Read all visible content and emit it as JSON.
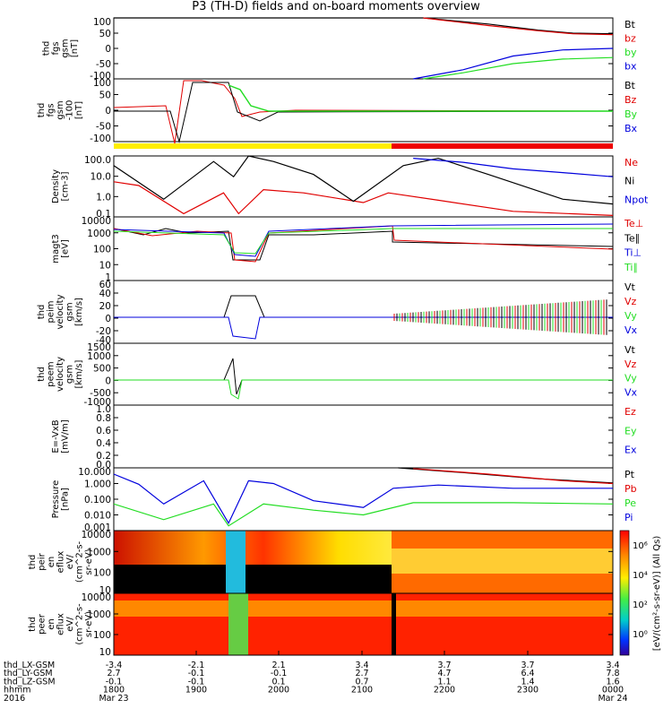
{
  "title": "P3 (TH-D) fields and on-board moments overview",
  "colors": {
    "black": "#000000",
    "red": "#e00000",
    "green": "#22dd22",
    "blue": "#0000dd",
    "yellow": "#ffee00",
    "orbit_red": "#ee0000"
  },
  "panels": [
    {
      "id": "fgs",
      "ylabel_lines": [
        "thd",
        "fgs",
        "gsm",
        "[nT]"
      ],
      "yticks": [
        "100",
        "50",
        "0",
        "-50",
        "-100"
      ],
      "ylim": [
        -100,
        100
      ],
      "legend": [
        {
          "text": "Bt",
          "color": "black"
        },
        {
          "text": "bz",
          "color": "red"
        },
        {
          "text": "by",
          "color": "green"
        },
        {
          "text": "bx",
          "color": "blue"
        }
      ]
    },
    {
      "id": "fgs_lo",
      "ylabel_lines": [
        "thd",
        "fgs",
        "gsm",
        "-100",
        "[nT]"
      ],
      "yticks": [
        "100",
        "50",
        "0",
        "-50",
        "-100"
      ],
      "ylim": [
        -120,
        110
      ],
      "legend": [
        {
          "text": "Bt",
          "color": "black"
        },
        {
          "text": "Bz",
          "color": "red"
        },
        {
          "text": "By",
          "color": "green"
        },
        {
          "text": "Bx",
          "color": "blue"
        }
      ]
    },
    {
      "id": "density",
      "ylabel_lines": [
        "Density",
        "[cm-3]"
      ],
      "yticks": [
        "100.0",
        "10.0",
        "1.0",
        "0.1"
      ],
      "ylim": [
        0.1,
        200
      ],
      "scale": "log",
      "legend": [
        {
          "text": "Ne",
          "color": "red"
        },
        {
          "text": "Ni",
          "color": "black"
        },
        {
          "text": "Npot",
          "color": "blue"
        }
      ]
    },
    {
      "id": "temperature",
      "ylabel_lines": [
        "magt3",
        "[eV]"
      ],
      "yticks": [
        "10000",
        "1000",
        "100",
        "10",
        "1"
      ],
      "ylim": [
        1,
        10000
      ],
      "scale": "log",
      "legend": [
        {
          "text": "Te⊥",
          "color": "red"
        },
        {
          "text": "Te∥",
          "color": "black"
        },
        {
          "text": "Ti⊥",
          "color": "blue"
        },
        {
          "text": "Ti∥",
          "color": "green"
        }
      ]
    },
    {
      "id": "peim",
      "ylabel_lines": [
        "thd",
        "peim",
        "velocity",
        "gsm",
        "[km/s]"
      ],
      "yticks": [
        "60",
        "40",
        "20",
        "0",
        "-20",
        "-40"
      ],
      "ylim": [
        -40,
        60
      ],
      "legend": [
        {
          "text": "Vt",
          "color": "black"
        },
        {
          "text": "Vz",
          "color": "red"
        },
        {
          "text": "Vy",
          "color": "green"
        },
        {
          "text": "Vx",
          "color": "blue"
        }
      ]
    },
    {
      "id": "peem",
      "ylabel_lines": [
        "thd",
        "peem",
        "velocity",
        "gsm",
        "[km/s]"
      ],
      "yticks": [
        "1500",
        "1000",
        "500",
        "0",
        "-500",
        "-1000"
      ],
      "ylim": [
        -1000,
        1500
      ],
      "legend": [
        {
          "text": "Vt",
          "color": "black"
        },
        {
          "text": "Vz",
          "color": "red"
        },
        {
          "text": "Vy",
          "color": "green"
        },
        {
          "text": "Vx",
          "color": "blue"
        }
      ]
    },
    {
      "id": "efield",
      "ylabel_lines": [
        "E=-VxB",
        "[mV/m]"
      ],
      "yticks": [
        "1.0",
        "0.8",
        "0.6",
        "0.4",
        "0.2",
        "0.0"
      ],
      "ylim": [
        0,
        1
      ],
      "legend": [
        {
          "text": "Ez",
          "color": "red"
        },
        {
          "text": "Ey",
          "color": "green"
        },
        {
          "text": "Ex",
          "color": "blue"
        }
      ]
    },
    {
      "id": "pressure",
      "ylabel_lines": [
        "Pressure",
        "[nPa]"
      ],
      "yticks": [
        "10.000",
        "1.000",
        "0.100",
        "0.010",
        "0.001"
      ],
      "ylim": [
        0.001,
        10
      ],
      "scale": "log",
      "legend": [
        {
          "text": "Pt",
          "color": "black"
        },
        {
          "text": "Pb",
          "color": "red"
        },
        {
          "text": "Pe",
          "color": "green"
        },
        {
          "text": "Pi",
          "color": "blue"
        }
      ]
    },
    {
      "id": "peir",
      "ylabel_lines": [
        "thd",
        "peir",
        "en",
        "eflux",
        "eV/",
        "(cm^2-s-",
        "sr-eV)"
      ],
      "yticks": [
        "10000",
        "1000",
        "100",
        "10"
      ],
      "ylim": [
        10,
        30000
      ],
      "scale": "log",
      "legend": []
    },
    {
      "id": "peer",
      "ylabel_lines": [
        "thd",
        "peer",
        "en",
        "eflux",
        "eV/",
        "(cm^2-s-",
        "sr-eV)"
      ],
      "yticks": [
        "10000",
        "1000",
        "100",
        "10"
      ],
      "ylim": [
        10,
        30000
      ],
      "scale": "log",
      "legend": []
    }
  ],
  "colorbar": {
    "ticks": [
      "10⁶",
      "10⁴",
      "10²",
      "10⁰"
    ],
    "label": "[eV/(cm²-s-sr-eV)] (All Qs)"
  },
  "footer": {
    "rows": [
      {
        "label": "thd_LX-GSM",
        "values": [
          "-3.4",
          "-2.1",
          "2.1",
          "3.4",
          "3.7",
          "3.7",
          "3.4"
        ]
      },
      {
        "label": "thd_LY-GSM",
        "values": [
          "2.7",
          "-0.1",
          "-0.1",
          "2.7",
          "4.7",
          "6.4",
          "7.8"
        ]
      },
      {
        "label": "thd_LZ-GSM",
        "values": [
          "-0.1",
          "-0.1",
          "0.1",
          "0.7",
          "1.1",
          "1.4",
          "1.6"
        ]
      },
      {
        "label": "hhmm",
        "values": [
          "1800",
          "1900",
          "2000",
          "2100",
          "2200",
          "2300",
          "0000"
        ]
      },
      {
        "label": "2016",
        "values": [
          "Mar 23",
          "",
          "",
          "",
          "",
          "",
          "Mar 24"
        ]
      }
    ]
  },
  "chart_data": {
    "type": "line",
    "title": "P3 (TH-D) fields and on-board moments overview",
    "x_ticks": [
      "1800",
      "1900",
      "2000",
      "2100",
      "2200",
      "2300",
      "0000"
    ],
    "series": [
      {
        "name": "Bt",
        "panel": "fgs",
        "points": [
          [
            0,
            100
          ],
          [
            0.5,
            100
          ],
          [
            0.62,
            100
          ],
          [
            0.75,
            80
          ],
          [
            0.85,
            60
          ],
          [
            0.92,
            50
          ],
          [
            1,
            48
          ]
        ]
      },
      {
        "name": "bz",
        "panel": "fgs",
        "points": [
          [
            0.62,
            100
          ],
          [
            0.75,
            75
          ],
          [
            0.85,
            58
          ],
          [
            0.92,
            48
          ],
          [
            1,
            45
          ]
        ]
      },
      {
        "name": "bx",
        "panel": "fgs",
        "points": [
          [
            0.6,
            -100
          ],
          [
            0.7,
            -70
          ],
          [
            0.8,
            -25
          ],
          [
            0.9,
            -5
          ],
          [
            1,
            0
          ]
        ]
      },
      {
        "name": "by",
        "panel": "fgs",
        "points": [
          [
            0.62,
            -100
          ],
          [
            0.7,
            -80
          ],
          [
            0.8,
            -50
          ],
          [
            0.9,
            -35
          ],
          [
            1,
            -30
          ]
        ]
      },
      {
        "name": "Ne",
        "panel": "density",
        "points": [
          [
            0,
            8
          ],
          [
            0.05,
            5
          ],
          [
            0.14,
            0.15
          ],
          [
            0.22,
            2
          ],
          [
            0.25,
            0.15
          ],
          [
            0.3,
            3
          ],
          [
            0.38,
            2
          ],
          [
            0.5,
            0.6
          ],
          [
            0.55,
            2
          ],
          [
            0.65,
            0.8
          ],
          [
            0.8,
            0.2
          ],
          [
            1,
            0.12
          ]
        ]
      },
      {
        "name": "Ni",
        "panel": "density",
        "points": [
          [
            0,
            60
          ],
          [
            0.1,
            0.9
          ],
          [
            0.2,
            100
          ],
          [
            0.24,
            15
          ],
          [
            0.27,
            200
          ],
          [
            0.32,
            100
          ],
          [
            0.4,
            20
          ],
          [
            0.48,
            0.7
          ],
          [
            0.58,
            60
          ],
          [
            0.65,
            150
          ],
          [
            0.75,
            20
          ],
          [
            0.9,
            0.9
          ],
          [
            1,
            0.5
          ]
        ]
      },
      {
        "name": "Npot",
        "panel": "density",
        "points": [
          [
            0.6,
            150
          ],
          [
            0.7,
            90
          ],
          [
            0.8,
            40
          ],
          [
            0.9,
            25
          ],
          [
            1,
            15
          ]
        ]
      },
      {
        "name": "Pt",
        "panel": "pressure",
        "points": [
          [
            0.57,
            10
          ],
          [
            0.7,
            5
          ],
          [
            0.85,
            2
          ],
          [
            1,
            1.1
          ]
        ]
      },
      {
        "name": "Pb",
        "panel": "pressure",
        "points": [
          [
            0.6,
            9
          ],
          [
            0.75,
            4
          ],
          [
            0.9,
            1.5
          ],
          [
            1,
            1
          ]
        ]
      },
      {
        "name": "Pi",
        "panel": "pressure",
        "points": [
          [
            0,
            4
          ],
          [
            0.05,
            0.9
          ],
          [
            0.1,
            0.05
          ],
          [
            0.18,
            1.5
          ],
          [
            0.23,
            0.003
          ],
          [
            0.27,
            1.5
          ],
          [
            0.32,
            1
          ],
          [
            0.4,
            0.08
          ],
          [
            0.5,
            0.03
          ],
          [
            0.56,
            0.5
          ],
          [
            0.65,
            0.8
          ],
          [
            0.8,
            0.5
          ],
          [
            1,
            0.5
          ]
        ]
      },
      {
        "name": "Pe",
        "panel": "pressure",
        "points": [
          [
            0,
            0.05
          ],
          [
            0.1,
            0.005
          ],
          [
            0.2,
            0.05
          ],
          [
            0.23,
            0.002
          ],
          [
            0.3,
            0.05
          ],
          [
            0.4,
            0.02
          ],
          [
            0.5,
            0.01
          ],
          [
            0.6,
            0.06
          ],
          [
            0.8,
            0.06
          ],
          [
            1,
            0.05
          ]
        ]
      }
    ]
  }
}
